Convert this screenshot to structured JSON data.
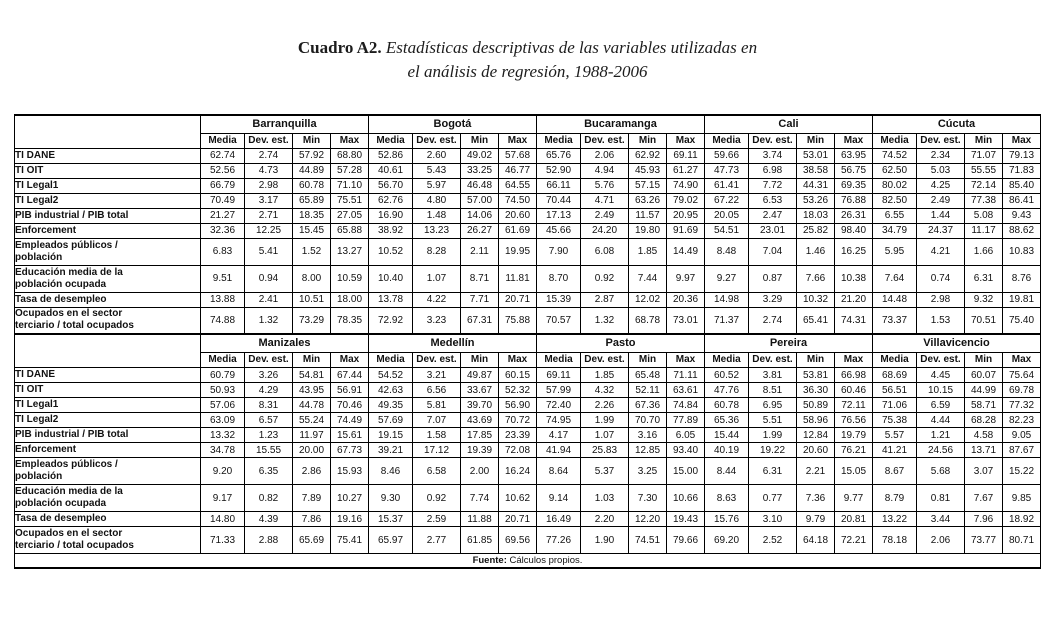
{
  "title": {
    "number": "Cuadro A2.",
    "line1": " Estadísticas descriptivas de las variables utilizadas en",
    "line2": "el análisis de regresión, 1988-2006"
  },
  "table": {
    "stat_headers": [
      "Media",
      "Dev. est.",
      "Min",
      "Max"
    ],
    "variables": [
      "TI DANE",
      "TI OIT",
      "TI Legal1",
      "TI Legal2",
      "PIB industrial / PIB total",
      "Enforcement",
      "Empleados públicos /\npoblación",
      "Educación media de la\npoblación ocupada",
      "Tasa de desempleo",
      "Ocupados en el sector\nterciario / total ocupados"
    ],
    "panels": [
      {
        "cities": [
          {
            "name": "Barranquilla",
            "stats": [
              [
                "62.74",
                "2.74",
                "57.92",
                "68.80"
              ],
              [
                "52.56",
                "4.73",
                "44.89",
                "57.28"
              ],
              [
                "66.79",
                "2.98",
                "60.78",
                "71.10"
              ],
              [
                "70.49",
                "3.17",
                "65.89",
                "75.51"
              ],
              [
                "21.27",
                "2.71",
                "18.35",
                "27.05"
              ],
              [
                "32.36",
                "12.25",
                "15.45",
                "65.88"
              ],
              [
                "6.83",
                "5.41",
                "1.52",
                "13.27"
              ],
              [
                "9.51",
                "0.94",
                "8.00",
                "10.59"
              ],
              [
                "13.88",
                "2.41",
                "10.51",
                "18.00"
              ],
              [
                "74.88",
                "1.32",
                "73.29",
                "78.35"
              ]
            ]
          },
          {
            "name": "Bogotá",
            "stats": [
              [
                "52.86",
                "2.60",
                "49.02",
                "57.68"
              ],
              [
                "40.61",
                "5.43",
                "33.25",
                "46.77"
              ],
              [
                "56.70",
                "5.97",
                "46.48",
                "64.55"
              ],
              [
                "62.76",
                "4.80",
                "57.00",
                "74.50"
              ],
              [
                "16.90",
                "1.48",
                "14.06",
                "20.60"
              ],
              [
                "38.92",
                "13.23",
                "26.27",
                "61.69"
              ],
              [
                "10.52",
                "8.28",
                "2.11",
                "19.95"
              ],
              [
                "10.40",
                "1.07",
                "8.71",
                "11.81"
              ],
              [
                "13.78",
                "4.22",
                "7.71",
                "20.71"
              ],
              [
                "72.92",
                "3.23",
                "67.31",
                "75.88"
              ]
            ]
          },
          {
            "name": "Bucaramanga",
            "stats": [
              [
                "65.76",
                "2.06",
                "62.92",
                "69.11"
              ],
              [
                "52.90",
                "4.94",
                "45.93",
                "61.27"
              ],
              [
                "66.11",
                "5.76",
                "57.15",
                "74.90"
              ],
              [
                "70.44",
                "4.71",
                "63.26",
                "79.02"
              ],
              [
                "17.13",
                "2.49",
                "11.57",
                "20.95"
              ],
              [
                "45.66",
                "24.20",
                "19.80",
                "91.69"
              ],
              [
                "7.90",
                "6.08",
                "1.85",
                "14.49"
              ],
              [
                "8.70",
                "0.92",
                "7.44",
                "9.97"
              ],
              [
                "15.39",
                "2.87",
                "12.02",
                "20.36"
              ],
              [
                "70.57",
                "1.32",
                "68.78",
                "73.01"
              ]
            ]
          },
          {
            "name": "Cali",
            "stats": [
              [
                "59.66",
                "3.74",
                "53.01",
                "63.95"
              ],
              [
                "47.73",
                "6.98",
                "38.58",
                "56.75"
              ],
              [
                "61.41",
                "7.72",
                "44.31",
                "69.35"
              ],
              [
                "67.22",
                "6.53",
                "53.26",
                "76.88"
              ],
              [
                "20.05",
                "2.47",
                "18.03",
                "26.31"
              ],
              [
                "54.51",
                "23.01",
                "25.82",
                "98.40"
              ],
              [
                "8.48",
                "7.04",
                "1.46",
                "16.25"
              ],
              [
                "9.27",
                "0.87",
                "7.66",
                "10.38"
              ],
              [
                "14.98",
                "3.29",
                "10.32",
                "21.20"
              ],
              [
                "71.37",
                "2.74",
                "65.41",
                "74.31"
              ]
            ]
          },
          {
            "name": "Cúcuta",
            "stats": [
              [
                "74.52",
                "2.34",
                "71.07",
                "79.13"
              ],
              [
                "62.50",
                "5.03",
                "55.55",
                "71.83"
              ],
              [
                "80.02",
                "4.25",
                "72.14",
                "85.40"
              ],
              [
                "82.50",
                "2.49",
                "77.38",
                "86.41"
              ],
              [
                "6.55",
                "1.44",
                "5.08",
                "9.43"
              ],
              [
                "34.79",
                "24.37",
                "11.17",
                "88.62"
              ],
              [
                "5.95",
                "4.21",
                "1.66",
                "10.83"
              ],
              [
                "7.64",
                "0.74",
                "6.31",
                "8.76"
              ],
              [
                "14.48",
                "2.98",
                "9.32",
                "19.81"
              ],
              [
                "73.37",
                "1.53",
                "70.51",
                "75.40"
              ]
            ]
          }
        ]
      },
      {
        "cities": [
          {
            "name": "Manizales",
            "stats": [
              [
                "60.79",
                "3.26",
                "54.81",
                "67.44"
              ],
              [
                "50.93",
                "4.29",
                "43.95",
                "56.91"
              ],
              [
                "57.06",
                "8.31",
                "44.78",
                "70.46"
              ],
              [
                "63.09",
                "6.57",
                "55.24",
                "74.49"
              ],
              [
                "13.32",
                "1.23",
                "11.97",
                "15.61"
              ],
              [
                "34.78",
                "15.55",
                "20.00",
                "67.73"
              ],
              [
                "9.20",
                "6.35",
                "2.86",
                "15.93"
              ],
              [
                "9.17",
                "0.82",
                "7.89",
                "10.27"
              ],
              [
                "14.80",
                "4.39",
                "7.86",
                "19.16"
              ],
              [
                "71.33",
                "2.88",
                "65.69",
                "75.41"
              ]
            ]
          },
          {
            "name": "Medellín",
            "stats": [
              [
                "54.52",
                "3.21",
                "49.87",
                "60.15"
              ],
              [
                "42.63",
                "6.56",
                "33.67",
                "52.32"
              ],
              [
                "49.35",
                "5.81",
                "39.70",
                "56.90"
              ],
              [
                "57.69",
                "7.07",
                "43.69",
                "70.72"
              ],
              [
                "19.15",
                "1.58",
                "17.85",
                "23.39"
              ],
              [
                "39.21",
                "17.12",
                "19.39",
                "72.08"
              ],
              [
                "8.46",
                "6.58",
                "2.00",
                "16.24"
              ],
              [
                "9.30",
                "0.92",
                "7.74",
                "10.62"
              ],
              [
                "15.37",
                "2.59",
                "11.88",
                "20.71"
              ],
              [
                "65.97",
                "2.77",
                "61.85",
                "69.56"
              ]
            ]
          },
          {
            "name": "Pasto",
            "stats": [
              [
                "69.11",
                "1.85",
                "65.48",
                "71.11"
              ],
              [
                "57.99",
                "4.32",
                "52.11",
                "63.61"
              ],
              [
                "72.40",
                "2.26",
                "67.36",
                "74.84"
              ],
              [
                "74.95",
                "1.99",
                "70.70",
                "77.89"
              ],
              [
                "4.17",
                "1.07",
                "3.16",
                "6.05"
              ],
              [
                "41.94",
                "25.83",
                "12.85",
                "93.40"
              ],
              [
                "8.64",
                "5.37",
                "3.25",
                "15.00"
              ],
              [
                "9.14",
                "1.03",
                "7.30",
                "10.66"
              ],
              [
                "16.49",
                "2.20",
                "12.20",
                "19.43"
              ],
              [
                "77.26",
                "1.90",
                "74.51",
                "79.66"
              ]
            ]
          },
          {
            "name": "Pereira",
            "stats": [
              [
                "60.52",
                "3.81",
                "53.81",
                "66.98"
              ],
              [
                "47.76",
                "8.51",
                "36.30",
                "60.46"
              ],
              [
                "60.78",
                "6.95",
                "50.89",
                "72.11"
              ],
              [
                "65.36",
                "5.51",
                "58.96",
                "76.56"
              ],
              [
                "15.44",
                "1.99",
                "12.84",
                "19.79"
              ],
              [
                "40.19",
                "19.22",
                "20.60",
                "76.21"
              ],
              [
                "8.44",
                "6.31",
                "2.21",
                "15.05"
              ],
              [
                "8.63",
                "0.77",
                "7.36",
                "9.77"
              ],
              [
                "15.76",
                "3.10",
                "9.79",
                "20.81"
              ],
              [
                "69.20",
                "2.52",
                "64.18",
                "72.21"
              ]
            ]
          },
          {
            "name": "Villavicencio",
            "stats": [
              [
                "68.69",
                "4.45",
                "60.07",
                "75.64"
              ],
              [
                "56.51",
                "10.15",
                "44.99",
                "69.78"
              ],
              [
                "71.06",
                "6.59",
                "58.71",
                "77.32"
              ],
              [
                "75.38",
                "4.44",
                "68.28",
                "82.23"
              ],
              [
                "5.57",
                "1.21",
                "4.58",
                "9.05"
              ],
              [
                "41.21",
                "24.56",
                "13.71",
                "87.67"
              ],
              [
                "8.67",
                "5.68",
                "3.07",
                "15.22"
              ],
              [
                "8.79",
                "0.81",
                "7.67",
                "9.85"
              ],
              [
                "13.22",
                "3.44",
                "7.96",
                "18.92"
              ],
              [
                "78.18",
                "2.06",
                "73.77",
                "80.71"
              ]
            ]
          }
        ]
      }
    ],
    "footer": {
      "label": "Fuente:",
      "text": " Cálculos propios."
    }
  }
}
